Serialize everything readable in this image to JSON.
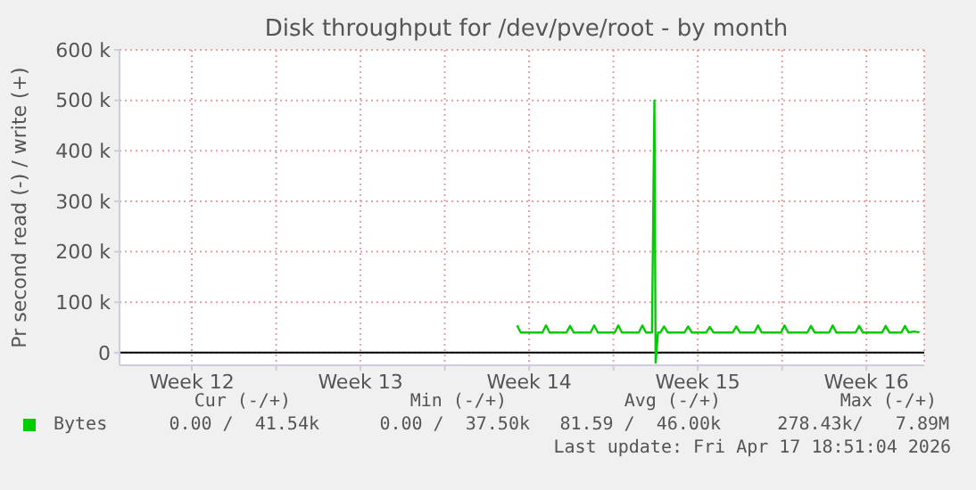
{
  "chart_data": {
    "type": "line",
    "title": "Disk throughput for /dev/pve/root - by month",
    "ylabel": "Pr second read (-) / write (+)",
    "x": [
      "2026-04-02T00:00",
      "2026-04-02T03:36",
      "2026-04-03T01:12",
      "2026-04-03T04:48",
      "2026-04-03T08:24",
      "2026-04-04T01:12",
      "2026-04-04T04:48",
      "2026-04-04T08:24",
      "2026-04-05T01:12",
      "2026-04-05T04:48",
      "2026-04-05T08:24",
      "2026-04-06T01:12",
      "2026-04-06T04:48",
      "2026-04-06T08:24",
      "2026-04-07T01:12",
      "2026-04-07T04:48",
      "2026-04-07T08:24",
      "2026-04-07T14:24",
      "2026-04-07T16:48",
      "2026-04-07T18:00",
      "2026-04-07T20:24",
      "2026-04-07T22:48",
      "2026-04-08T02:24",
      "2026-04-08T06:00",
      "2026-04-08T22:48",
      "2026-04-09T02:24",
      "2026-04-09T06:00",
      "2026-04-09T20:24",
      "2026-04-10T00:00",
      "2026-04-10T03:36",
      "2026-04-10T22:48",
      "2026-04-11T02:24",
      "2026-04-11T06:00",
      "2026-04-11T20:24",
      "2026-04-12T00:00",
      "2026-04-12T03:36",
      "2026-04-12T22:48",
      "2026-04-13T02:24",
      "2026-04-13T06:00",
      "2026-04-14T01:12",
      "2026-04-14T04:48",
      "2026-04-14T08:24",
      "2026-04-14T22:48",
      "2026-04-15T02:24",
      "2026-04-15T06:00",
      "2026-04-16T01:12",
      "2026-04-16T04:48",
      "2026-04-16T08:24",
      "2026-04-17T03:36",
      "2026-04-17T07:12",
      "2026-04-17T10:48",
      "2026-04-17T22:48",
      "2026-04-18T02:24",
      "2026-04-18T06:00",
      "2026-04-18T12:00",
      "2026-04-18T16:48"
    ],
    "series": [
      {
        "name": "Bytes",
        "color": "#00cc00",
        "values": [
          54000,
          40000,
          40000,
          54000,
          40000,
          40000,
          53000,
          40000,
          40000,
          54000,
          40000,
          40000,
          54000,
          40000,
          40000,
          54000,
          40000,
          40000,
          500000,
          -20000,
          40000,
          40000,
          52000,
          40000,
          40000,
          52000,
          40000,
          40000,
          51000,
          40000,
          40000,
          52000,
          40000,
          40000,
          54000,
          40000,
          40000,
          54000,
          40000,
          40000,
          53000,
          40000,
          40000,
          54000,
          40000,
          40000,
          53000,
          40000,
          40000,
          53000,
          40000,
          40000,
          53000,
          40000,
          42000,
          40000
        ]
      }
    ],
    "xlim": [
      "2026-03-16T12:00",
      "2026-04-18T21:36"
    ],
    "xticks": [
      {
        "value": "2026-03-19T12:00",
        "label": "Week 12"
      },
      {
        "value": "2026-03-23",
        "label": null
      },
      {
        "value": "2026-03-26T12:00",
        "label": "Week 13"
      },
      {
        "value": "2026-03-30",
        "label": null
      },
      {
        "value": "2026-04-02T12:00",
        "label": "Week 14"
      },
      {
        "value": "2026-04-06",
        "label": null
      },
      {
        "value": "2026-04-09T12:00",
        "label": "Week 15"
      },
      {
        "value": "2026-04-13",
        "label": null
      },
      {
        "value": "2026-04-16T12:00",
        "label": "Week 16"
      }
    ],
    "ylim": [
      -25000,
      600000
    ],
    "yticks": [
      0,
      {
        "value": 100000,
        "label": "100 k"
      },
      {
        "value": 200000,
        "label": "200 k"
      },
      {
        "value": 300000,
        "label": "300 k"
      },
      {
        "value": 400000,
        "label": "400 k"
      },
      {
        "value": 500000,
        "label": "500 k"
      },
      {
        "value": 600000,
        "label": "600 k"
      }
    ],
    "ref_lines": [
      {
        "axis": "y",
        "value": 0,
        "color": "#000000"
      }
    ],
    "grid": true,
    "legend": "bottom left",
    "marker": "none",
    "line_style": "solid",
    "annotations": [
      "Cur (-/+)",
      "Min (-/+)",
      "Avg (-/+)",
      "Max (-/+)",
      "0.00 /  41.54k",
      "0.00 /  37.50k",
      "81.59 /  46.00k",
      "278.43k/   7.89M",
      "Last update: Fri Apr 17 18:51:04 2026"
    ]
  }
}
